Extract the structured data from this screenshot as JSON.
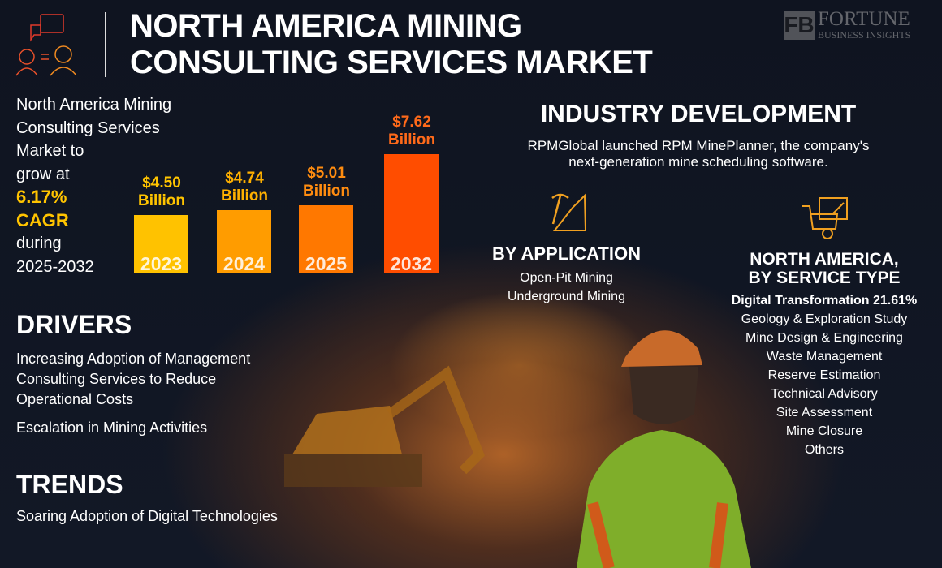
{
  "header": {
    "title_line1": "NORTH AMERICA MINING",
    "title_line2": "CONSULTING SERVICES MARKET",
    "logo_line1": "FORTUNE",
    "logo_line2": "BUSINESS INSIGHTS"
  },
  "summary": {
    "line1": "North America Mining",
    "line2": "Consulting Services",
    "line3": "Market to",
    "line4": "grow at",
    "cagr": "6.17%",
    "cagr_label": "CAGR",
    "line5": "during",
    "period": "2025-2032"
  },
  "chart_data": {
    "type": "bar",
    "categories": [
      "2023",
      "2024",
      "2025",
      "2032"
    ],
    "values": [
      4.5,
      4.74,
      5.01,
      7.62
    ],
    "labels": [
      "$4.50",
      "$4.74",
      "$5.01",
      "$7.62"
    ],
    "unit": "Billion",
    "colors": [
      "#ffc200",
      "#ff9c00",
      "#ff7800",
      "#ff4d00"
    ],
    "label_colors": [
      "#ffc400",
      "#ffb000",
      "#ff8c10",
      "#ff6a1a"
    ]
  },
  "industry": {
    "heading": "INDUSTRY DEVELOPMENT",
    "line1": "RPMGlobal launched RPM MinePlanner, the company's",
    "line2": "next-generation mine scheduling software."
  },
  "application": {
    "heading": "BY APPLICATION",
    "items": [
      "Open-Pit Mining",
      "Underground Mining"
    ]
  },
  "service": {
    "heading1": "NORTH AMERICA,",
    "heading2": "BY SERVICE TYPE",
    "highlight": "Digital Transformation 21.61%",
    "items": [
      "Geology & Exploration Study",
      "Mine Design & Engineering",
      "Waste Management",
      "Reserve Estimation",
      "Technical Advisory",
      "Site Assessment",
      "Mine Closure",
      "Others"
    ]
  },
  "drivers": {
    "heading": "DRIVERS",
    "item1_line1": "Increasing Adoption of Management",
    "item1_line2": "Consulting Services to Reduce",
    "item1_line3": "Operational Costs",
    "item2": "Escalation in Mining Activities"
  },
  "trends": {
    "heading": "TRENDS",
    "item1": "Soaring Adoption of Digital Technologies"
  }
}
